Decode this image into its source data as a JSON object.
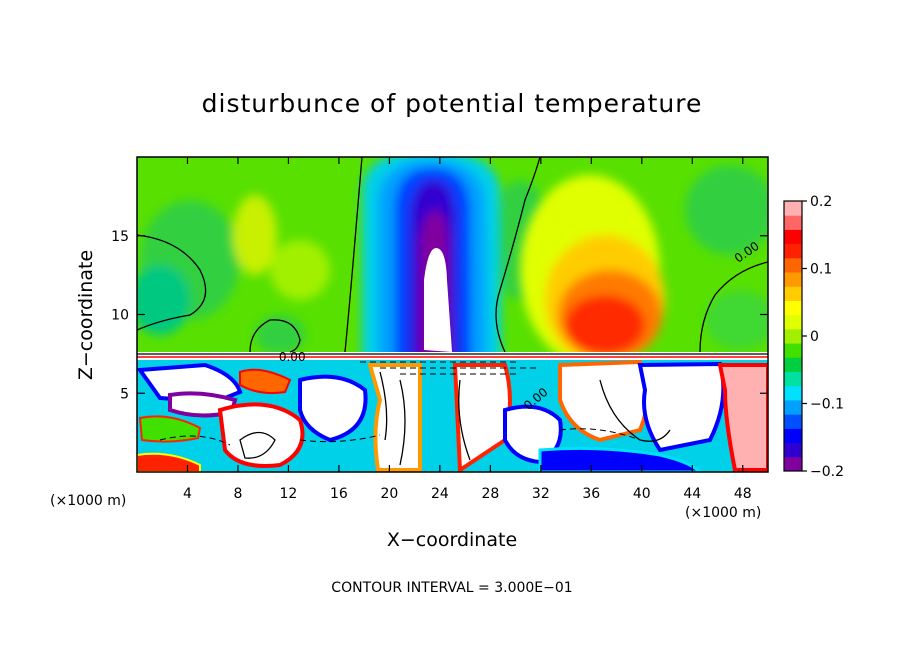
{
  "chart_data": {
    "type": "heatmap",
    "title": "disturbunce of potential temperature",
    "xlabel": "X−coordinate",
    "ylabel": "Z−coordinate",
    "x_unit": "(×1000 m)",
    "y_unit": "(×1000 m)",
    "xlim": [
      0,
      50
    ],
    "ylim": [
      0,
      20
    ],
    "xticks": [
      4,
      8,
      12,
      16,
      20,
      24,
      28,
      32,
      36,
      40,
      44,
      48
    ],
    "yticks": [
      5,
      10,
      15
    ],
    "footer": "CONTOUR INTERVAL = 3.000E−01",
    "contour_labels": [
      {
        "text": "0.00",
        "x": 12.3,
        "y": 7.3
      },
      {
        "text": "0.00",
        "x": 48.5,
        "y": 14.0
      },
      {
        "text": "0.00",
        "x": 31.8,
        "y": 4.7
      }
    ],
    "colorbar": {
      "min": -0.2,
      "max": 0.2,
      "ticks": [
        0.2,
        0.1,
        0,
        -0.1,
        -0.2
      ],
      "tick_labels": [
        "0.2",
        "0.1",
        "0",
        "−0.1",
        "−0.2"
      ],
      "colors": [
        "#8000a0",
        "#3000d0",
        "#0000ff",
        "#0050ff",
        "#00a0ff",
        "#00e0ff",
        "#00e0a0",
        "#00d040",
        "#40e000",
        "#a0f000",
        "#e0ff00",
        "#ffff00",
        "#ffcc00",
        "#ff9900",
        "#ff6600",
        "#ff2200",
        "#ff0000",
        "#ff6666",
        "#ffb0b0"
      ]
    },
    "features": [
      {
        "kind": "upper-positive-region",
        "x": [
          33,
          44
        ],
        "z": [
          8,
          15
        ],
        "value": 0.12
      },
      {
        "kind": "upper-negative-plume",
        "x": [
          18,
          30
        ],
        "z": [
          7.5,
          19.5
        ],
        "value": -0.2
      },
      {
        "kind": "stable-layer-interface",
        "z": 7.3
      },
      {
        "kind": "lower-turbulent-layer",
        "z": [
          0,
          7.2
        ]
      }
    ]
  }
}
